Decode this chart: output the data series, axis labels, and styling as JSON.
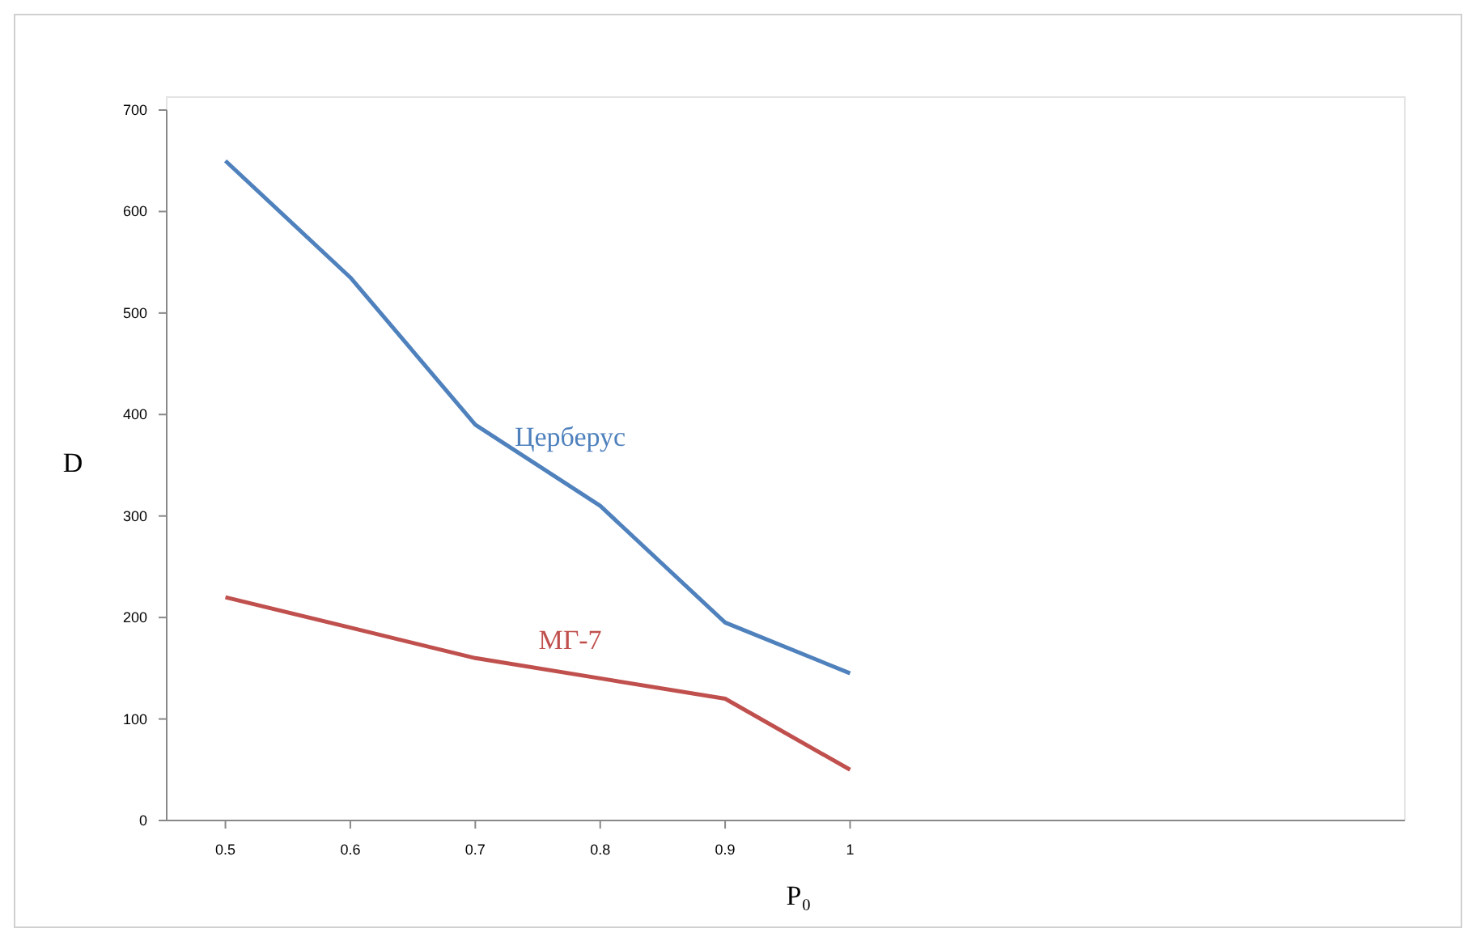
{
  "chart_data": {
    "type": "line",
    "xlabel": "P₀",
    "ylabel": "D",
    "x": [
      0.5,
      0.6,
      0.7,
      0.8,
      0.9,
      1
    ],
    "series": [
      {
        "name": "Церберус",
        "color": "#4f81bd",
        "values": [
          650,
          535,
          390,
          310,
          195,
          145
        ]
      },
      {
        "name": "МГ-7",
        "color": "#c0504d",
        "values": [
          220,
          190,
          160,
          140,
          120,
          50
        ]
      }
    ],
    "xlim": [
      0.453,
      1.444
    ],
    "xticks": [
      0.5,
      0.6,
      0.7,
      0.8,
      0.9,
      1
    ],
    "ylim": [
      0,
      700
    ],
    "yticks": [
      0,
      100,
      200,
      300,
      400,
      500,
      600,
      700
    ],
    "grid": false,
    "marker": "none",
    "line_style": "solid"
  }
}
